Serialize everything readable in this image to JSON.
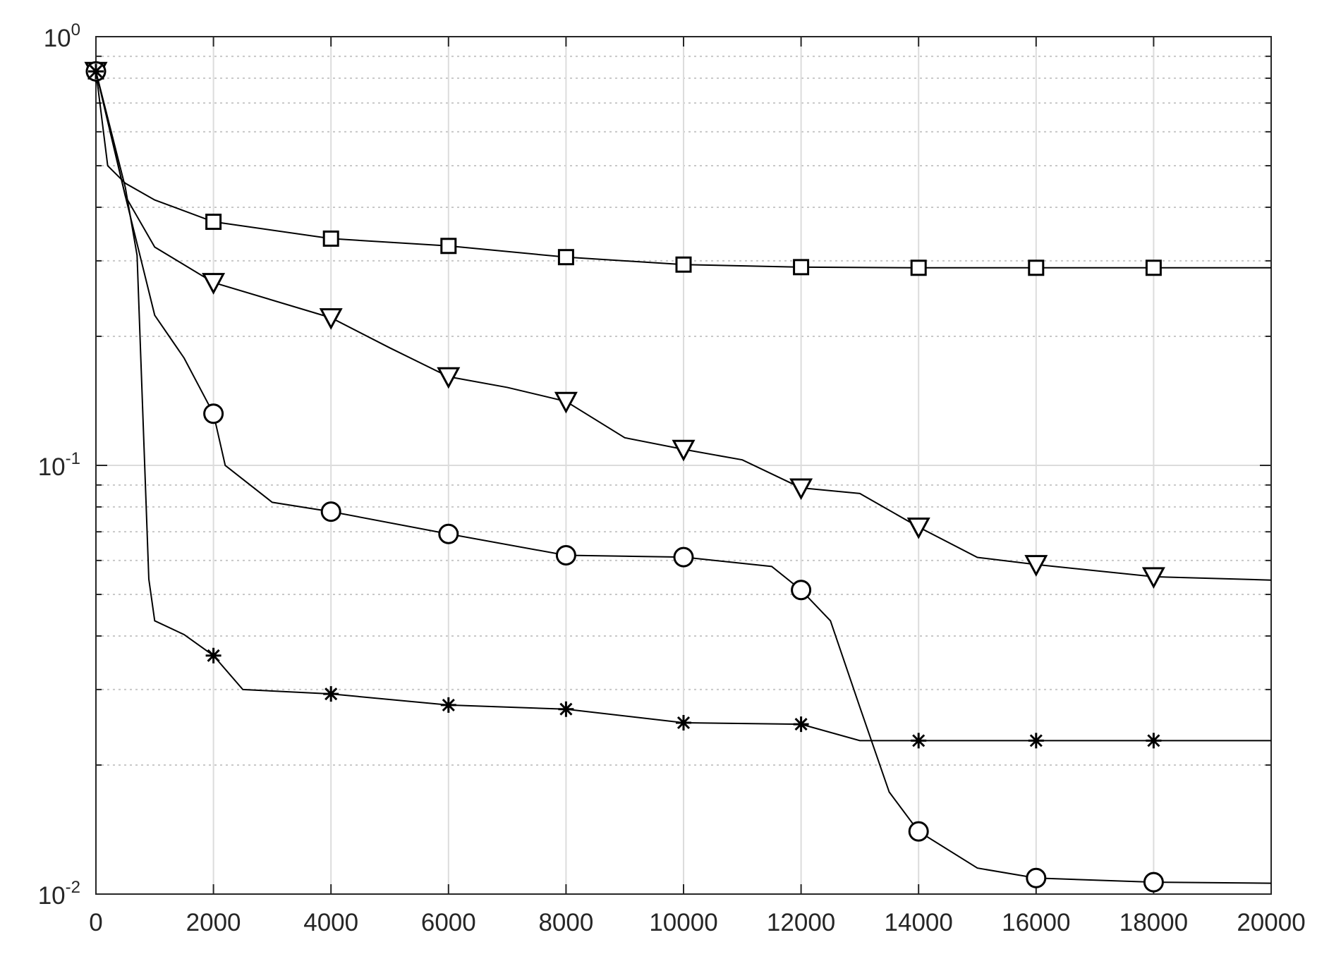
{
  "chart_data": {
    "type": "line",
    "log_y": true,
    "grid": true,
    "minor_grid": true,
    "xlim": [
      0,
      20000
    ],
    "xticks": [
      0,
      2000,
      4000,
      6000,
      8000,
      10000,
      12000,
      14000,
      16000,
      18000,
      20000
    ],
    "ylim": [
      0.01,
      1
    ],
    "yticks": [
      {
        "value": 0.01,
        "label": "10",
        "exponent": "-2"
      },
      {
        "value": 0.1,
        "label": "10",
        "exponent": "-1"
      },
      {
        "value": 1,
        "label": "10",
        "exponent": "0"
      }
    ],
    "series": [
      {
        "marker": "square",
        "color": "#000000",
        "x": [
          0,
          200,
          500,
          1000,
          2000,
          4000,
          6000,
          8000,
          10000,
          12000,
          14000,
          16000,
          18000,
          20000
        ],
        "values": [
          0.83,
          0.5,
          0.455,
          0.416,
          0.37,
          0.338,
          0.325,
          0.306,
          0.294,
          0.29,
          0.289,
          0.289,
          0.289,
          0.289
        ]
      },
      {
        "marker": "triangle-down",
        "color": "#000000",
        "x": [
          0,
          500,
          1000,
          2000,
          4000,
          5000,
          6000,
          7000,
          8000,
          9000,
          10000,
          11000,
          12000,
          13000,
          14000,
          15000,
          16000,
          18000,
          20000
        ],
        "values": [
          0.83,
          0.425,
          0.323,
          0.267,
          0.221,
          0.188,
          0.161,
          0.152,
          0.141,
          0.116,
          0.109,
          0.103,
          0.0886,
          0.086,
          0.0718,
          0.061,
          0.0587,
          0.055,
          0.054
        ]
      },
      {
        "marker": "circle",
        "color": "#000000",
        "x": [
          0,
          500,
          1000,
          1500,
          2000,
          2200,
          3000,
          4000,
          6000,
          8000,
          10000,
          11500,
          12000,
          12500,
          13000,
          13500,
          14000,
          15000,
          16000,
          18000,
          20000
        ],
        "values": [
          0.83,
          0.425,
          0.224,
          0.178,
          0.132,
          0.1,
          0.082,
          0.078,
          0.0692,
          0.0617,
          0.0611,
          0.0581,
          0.0512,
          0.0434,
          0.0273,
          0.0173,
          0.014,
          0.0115,
          0.0109,
          0.01066,
          0.0106
        ]
      },
      {
        "marker": "asterisk",
        "color": "#000000",
        "x": [
          0,
          500,
          700,
          900,
          1000,
          1500,
          2000,
          2500,
          4000,
          6000,
          8000,
          10000,
          12000,
          13000,
          14000,
          16000,
          18000,
          20000
        ],
        "values": [
          0.83,
          0.445,
          0.309,
          0.0543,
          0.0434,
          0.0403,
          0.036,
          0.03,
          0.0293,
          0.0276,
          0.027,
          0.0251,
          0.0249,
          0.0228,
          0.0228,
          0.0228,
          0.0228,
          0.0228
        ]
      }
    ]
  }
}
